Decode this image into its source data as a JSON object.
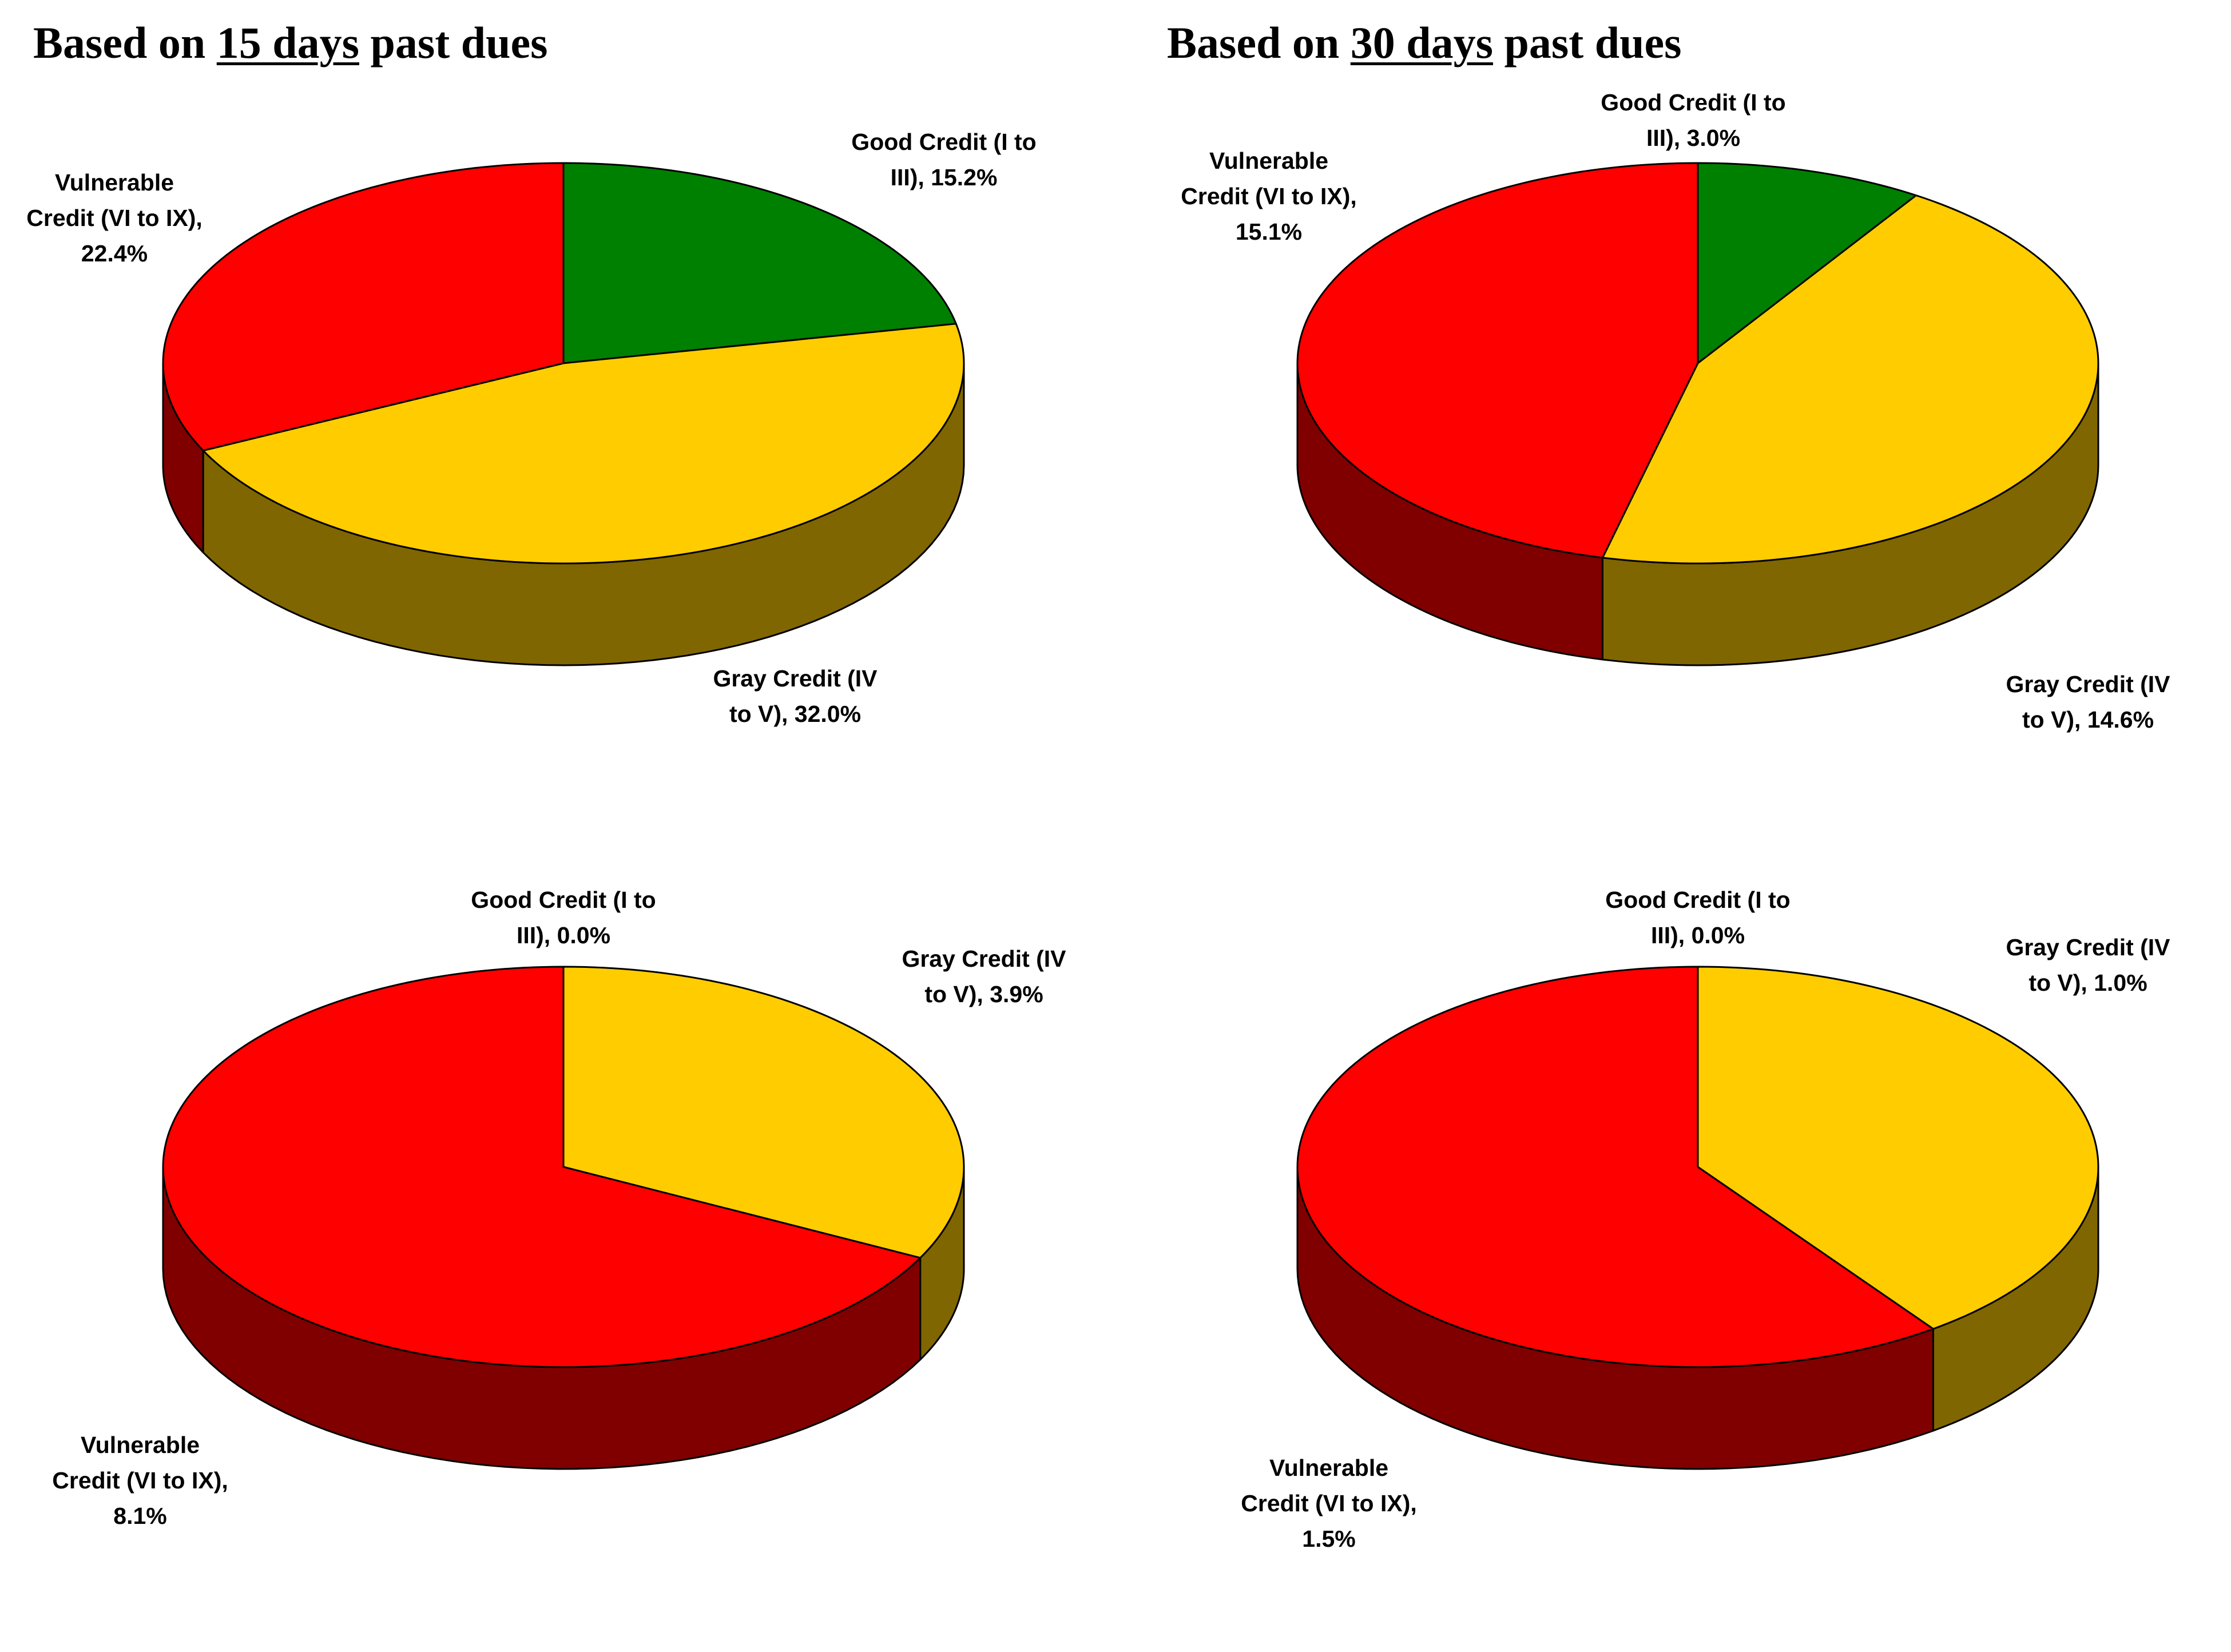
{
  "titles": [
    {
      "prefix": "Based on ",
      "emph": "15 days",
      "suffix": " past dues"
    },
    {
      "prefix": "Based on ",
      "emph": "30 days",
      "suffix": " past dues"
    }
  ],
  "colors": {
    "good": "#008000",
    "good_side": "#004000",
    "gray": "#FFCC00",
    "gray_side": "#806600",
    "vulnerable": "#FF0000",
    "vulnerable_side": "#800000",
    "outline": "#000000"
  },
  "chart_data": [
    {
      "type": "pie",
      "series": [
        {
          "key": "good",
          "value": 15.2,
          "label": [
            "Good Credit (I to",
            "III), 15.2%"
          ]
        },
        {
          "key": "gray",
          "value": 32.0,
          "label": [
            "Gray Credit (IV",
            "to V), 32.0%"
          ]
        },
        {
          "key": "vulnerable",
          "value": 22.4,
          "label": [
            "Vulnerable",
            "Credit (VI to IX),",
            "22.4%"
          ]
        }
      ]
    },
    {
      "type": "pie",
      "series": [
        {
          "key": "good",
          "value": 3.0,
          "label": [
            "Good Credit (I to",
            "III), 3.0%"
          ]
        },
        {
          "key": "gray",
          "value": 14.6,
          "label": [
            "Gray Credit (IV",
            "to V), 14.6%"
          ]
        },
        {
          "key": "vulnerable",
          "value": 15.1,
          "label": [
            "Vulnerable",
            "Credit (VI to IX),",
            "15.1%"
          ]
        }
      ]
    },
    {
      "type": "pie",
      "series": [
        {
          "key": "good",
          "value": 0.0,
          "label": [
            "Good Credit (I to",
            "III), 0.0%"
          ]
        },
        {
          "key": "gray",
          "value": 3.9,
          "label": [
            "Gray Credit (IV",
            "to V), 3.9%"
          ]
        },
        {
          "key": "vulnerable",
          "value": 8.1,
          "label": [
            "Vulnerable",
            "Credit (VI to IX),",
            "8.1%"
          ]
        }
      ]
    },
    {
      "type": "pie",
      "series": [
        {
          "key": "good",
          "value": 0.0,
          "label": [
            "Good Credit (I to",
            "III), 0.0%"
          ]
        },
        {
          "key": "gray",
          "value": 1.0,
          "label": [
            "Gray Credit (IV",
            "to V), 1.0%"
          ]
        },
        {
          "key": "vulnerable",
          "value": 1.5,
          "label": [
            "Vulnerable",
            "Credit (VI to IX),",
            "1.5%"
          ]
        }
      ]
    }
  ]
}
